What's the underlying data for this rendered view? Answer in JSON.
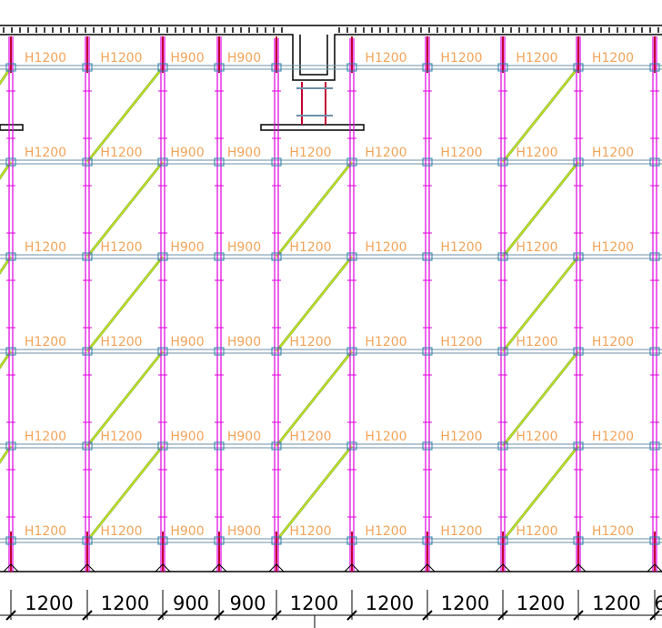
{
  "bay_labels": [
    [
      "H1200",
      "H1200",
      "H900",
      "H900",
      null,
      "H1200",
      "H1200",
      "H1200",
      "H1200"
    ],
    [
      "H1200",
      "H1200",
      "H900",
      "H900",
      "H1200",
      "H1200",
      "H1200",
      "H1200",
      "H1200"
    ],
    [
      "H1200",
      "H1200",
      "H900",
      "H900",
      "H1200",
      "H1200",
      "H1200",
      "H1200",
      "H1200"
    ],
    [
      "H1200",
      "H1200",
      "H900",
      "H900",
      "H1200",
      "H1200",
      "H1200",
      "H1200",
      "H1200"
    ],
    [
      "H1200",
      "H1200",
      "H900",
      "H900",
      "H1200",
      "H1200",
      "H1200",
      "H1200",
      "H1200"
    ],
    [
      "H1200",
      "H1200",
      "H900",
      "H900",
      "H1200",
      "H1200",
      "H1200",
      "H1200",
      "H1200"
    ]
  ],
  "dimensions": [
    1200,
    1200,
    900,
    900,
    1200,
    1200,
    1200,
    1200,
    1200,
    6
  ]
}
